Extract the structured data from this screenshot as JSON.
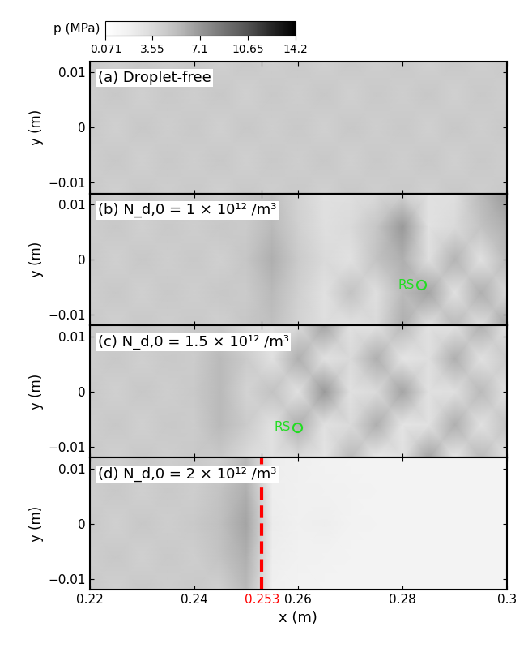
{
  "chart_data": [
    {
      "type": "heatmap",
      "title": "(a) Droplet-free",
      "ylabel": "y (m)",
      "x": [
        0.22,
        0.225,
        0.23,
        0.235,
        0.24,
        0.245,
        0.25,
        0.255,
        0.26,
        0.265,
        0.27,
        0.275,
        0.28,
        0.285,
        0.29,
        0.295,
        0.3
      ],
      "y": [
        -0.012,
        -0.006,
        0,
        0.006,
        0.012
      ],
      "cells": [
        [
          4.6,
          4.2,
          4.7,
          4.3,
          4.6,
          4.2,
          4.7,
          4.3,
          4.6,
          4.2,
          4.7,
          4.3,
          4.6,
          4.2,
          4.7,
          4.3,
          4.6
        ],
        [
          4.3,
          4.7,
          4.2,
          4.6,
          4.3,
          4.7,
          4.2,
          4.6,
          4.3,
          4.7,
          4.2,
          4.6,
          4.3,
          4.7,
          4.2,
          4.6,
          4.3
        ],
        [
          4.6,
          4.2,
          4.7,
          4.3,
          4.6,
          4.2,
          4.7,
          4.3,
          4.6,
          4.2,
          4.7,
          4.3,
          4.6,
          4.2,
          4.7,
          4.3,
          4.6
        ],
        [
          4.3,
          4.7,
          4.2,
          4.6,
          4.3,
          4.7,
          4.2,
          4.6,
          4.3,
          4.7,
          4.2,
          4.6,
          4.3,
          4.7,
          4.2,
          4.6,
          4.3
        ],
        [
          4.6,
          4.2,
          4.7,
          4.3,
          4.6,
          4.2,
          4.7,
          4.3,
          4.6,
          4.2,
          4.7,
          4.3,
          4.6,
          4.2,
          4.7,
          4.3,
          4.6
        ]
      ],
      "xlim": [
        0.22,
        0.3
      ],
      "ylim": [
        -0.012,
        0.012
      ],
      "xticks": [
        0.22,
        0.24,
        0.253,
        0.26,
        0.28,
        0.3
      ],
      "yticks": [
        {
          "value": -0.01,
          "label": "−0.01"
        },
        0,
        0.01
      ],
      "tick_labels": "y",
      "colorbar": {
        "label": "p (MPa)",
        "range": [
          0.071,
          14.2
        ],
        "ticks": [
          0.071,
          3.55,
          7.1,
          10.65,
          14.2
        ]
      }
    },
    {
      "type": "heatmap",
      "title": "(b) N_d,0 = 1 × 10¹² /m³",
      "ylabel": "y (m)",
      "x": [
        0.22,
        0.225,
        0.23,
        0.235,
        0.24,
        0.245,
        0.25,
        0.255,
        0.26,
        0.265,
        0.27,
        0.275,
        0.28,
        0.285,
        0.29,
        0.295,
        0.3
      ],
      "y": [
        -0.012,
        -0.006,
        0,
        0.006,
        0.012
      ],
      "cells": [
        [
          4.6,
          4.2,
          4.7,
          4.3,
          4.6,
          4.2,
          4.8,
          5.2,
          4.0,
          3.2,
          3.0,
          3.5,
          6.0,
          3.0,
          5.5,
          3.2,
          6.5
        ],
        [
          4.3,
          4.7,
          4.2,
          4.6,
          4.3,
          4.7,
          4.5,
          5.5,
          4.2,
          3.0,
          5.0,
          3.2,
          5.5,
          6.5,
          3.0,
          6.0,
          3.5
        ],
        [
          4.6,
          4.2,
          4.7,
          4.3,
          4.6,
          4.2,
          4.8,
          6.0,
          4.5,
          3.5,
          3.0,
          5.0,
          6.0,
          3.2,
          5.8,
          3.0,
          5.5
        ],
        [
          4.3,
          4.7,
          4.2,
          4.6,
          4.3,
          4.7,
          4.5,
          5.5,
          4.2,
          3.2,
          3.5,
          4.8,
          7.0,
          3.0,
          3.5,
          5.0,
          6.0
        ],
        [
          4.6,
          4.2,
          4.7,
          4.3,
          4.6,
          4.2,
          4.8,
          5.2,
          4.0,
          3.0,
          3.2,
          3.5,
          4.0,
          3.0,
          3.2,
          5.5,
          7.0
        ]
      ],
      "xlim": [
        0.22,
        0.3
      ],
      "ylim": [
        -0.012,
        0.012
      ],
      "xticks": [
        0.22,
        0.24,
        0.253,
        0.26,
        0.28,
        0.3
      ],
      "yticks": [
        {
          "value": -0.01,
          "label": "−0.01"
        },
        0,
        0.01
      ],
      "tick_labels": "y",
      "annotations": [
        {
          "text": "RS",
          "x": 0.2835,
          "y": -0.0046,
          "color": "#22dd22"
        }
      ]
    },
    {
      "type": "heatmap",
      "title": "(c) N_d,0 = 1.5 × 10¹² /m³",
      "ylabel": "y (m)",
      "x": [
        0.22,
        0.225,
        0.23,
        0.235,
        0.24,
        0.245,
        0.25,
        0.255,
        0.26,
        0.265,
        0.27,
        0.275,
        0.28,
        0.285,
        0.29,
        0.295,
        0.3
      ],
      "y": [
        -0.012,
        -0.006,
        0,
        0.006,
        0.012
      ],
      "cells": [
        [
          4.6,
          4.2,
          4.7,
          4.3,
          4.6,
          4.6,
          3.5,
          3.0,
          3.5,
          2.8,
          5.5,
          2.5,
          3.0,
          6.5,
          2.5,
          5.5,
          3.0
        ],
        [
          4.3,
          4.7,
          4.2,
          4.6,
          4.4,
          5.5,
          4.5,
          3.0,
          6.0,
          3.0,
          3.5,
          6.0,
          2.8,
          3.0,
          6.0,
          3.0,
          5.0
        ],
        [
          4.6,
          4.2,
          4.7,
          4.3,
          4.6,
          5.5,
          4.0,
          5.0,
          3.0,
          7.0,
          3.0,
          3.5,
          6.5,
          3.0,
          3.2,
          5.5,
          3.0
        ],
        [
          4.3,
          4.7,
          4.2,
          4.6,
          4.4,
          5.5,
          4.5,
          3.0,
          6.0,
          3.0,
          3.5,
          6.0,
          2.8,
          3.2,
          6.0,
          3.0,
          4.5
        ],
        [
          4.6,
          4.2,
          4.7,
          4.3,
          4.6,
          4.6,
          3.5,
          3.0,
          3.5,
          6.5,
          3.0,
          3.0,
          5.5,
          3.0,
          3.0,
          6.0,
          3.0
        ]
      ],
      "xlim": [
        0.22,
        0.3
      ],
      "ylim": [
        -0.012,
        0.012
      ],
      "xticks": [
        0.22,
        0.24,
        0.253,
        0.26,
        0.28,
        0.3
      ],
      "yticks": [
        {
          "value": -0.01,
          "label": "−0.01"
        },
        0,
        0.01
      ],
      "tick_labels": "y",
      "annotations": [
        {
          "text": "RS",
          "x": 0.2598,
          "y": -0.0065,
          "color": "#22dd22"
        }
      ]
    },
    {
      "type": "heatmap",
      "title": "(d) N_d,0 = 2 × 10¹² /m³",
      "ylabel": "y (m)",
      "xlabel": "x (m)",
      "x": [
        0.22,
        0.225,
        0.23,
        0.235,
        0.24,
        0.245,
        0.25,
        0.255,
        0.26,
        0.265,
        0.27,
        0.275,
        0.28,
        0.285,
        0.29,
        0.295,
        0.3
      ],
      "y": [
        -0.012,
        -0.006,
        0,
        0.006,
        0.012
      ],
      "cells": [
        [
          4.6,
          4.2,
          4.7,
          4.3,
          4.6,
          4.2,
          5.5,
          1.8,
          1.6,
          1.5,
          1.5,
          1.5,
          1.5,
          1.5,
          1.5,
          1.5,
          1.5
        ],
        [
          4.3,
          4.7,
          4.2,
          4.6,
          4.3,
          5.0,
          6.0,
          2.0,
          1.7,
          1.6,
          1.5,
          1.5,
          1.5,
          1.5,
          1.5,
          1.5,
          1.5
        ],
        [
          4.6,
          4.2,
          4.7,
          4.3,
          4.6,
          5.2,
          6.5,
          2.2,
          1.8,
          2.0,
          1.6,
          1.5,
          1.5,
          1.5,
          1.5,
          1.5,
          1.5
        ],
        [
          4.3,
          4.7,
          4.2,
          4.6,
          4.3,
          5.0,
          6.0,
          2.0,
          1.8,
          1.7,
          1.6,
          1.5,
          1.5,
          1.5,
          1.5,
          1.5,
          1.5
        ],
        [
          4.6,
          4.2,
          4.7,
          4.3,
          4.6,
          4.2,
          5.5,
          2.0,
          1.8,
          1.6,
          1.5,
          1.5,
          1.5,
          1.5,
          1.5,
          1.5,
          1.5
        ]
      ],
      "xlim": [
        0.22,
        0.3
      ],
      "ylim": [
        -0.012,
        0.012
      ],
      "xticks": [
        0.22,
        0.24,
        0.253,
        0.26,
        0.28,
        0.3
      ],
      "yticks": [
        {
          "value": -0.01,
          "label": "−0.01"
        },
        0,
        0.01
      ],
      "reference_line": {
        "x": 0.253,
        "color": "red"
      }
    }
  ]
}
